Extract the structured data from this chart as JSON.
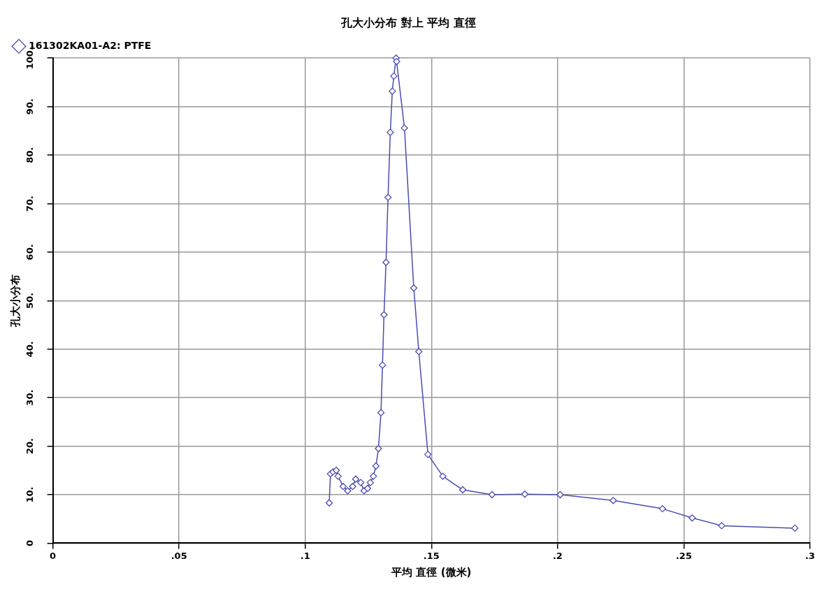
{
  "chart_data": {
    "type": "line",
    "title": "孔大小分布 對上 平均 直徑",
    "xlabel": "平均 直徑 (微米)",
    "ylabel": "孔大小分布",
    "xlim": [
      0,
      0.3
    ],
    "xticks": [
      0,
      {
        "value": 0.05,
        "label": ".05"
      },
      {
        "value": 0.1,
        "label": ".1"
      },
      {
        "value": 0.15,
        "label": ".15"
      },
      {
        "value": 0.2,
        "label": ".2"
      },
      {
        "value": 0.25,
        "label": ".25"
      },
      {
        "value": 0.3,
        "label": ".3"
      }
    ],
    "ylim": [
      0,
      100
    ],
    "yticks": [
      0,
      {
        "value": 10,
        "label": "10."
      },
      {
        "value": 20,
        "label": "20."
      },
      {
        "value": 30,
        "label": "30."
      },
      {
        "value": 40,
        "label": "40."
      },
      {
        "value": 50,
        "label": "50."
      },
      {
        "value": 60,
        "label": "60."
      },
      {
        "value": 70,
        "label": "70."
      },
      {
        "value": 80,
        "label": "80."
      },
      {
        "value": 90,
        "label": "90."
      },
      {
        "value": 100,
        "label": "100."
      }
    ],
    "grid": true,
    "legend": "top left",
    "marker": "diamond",
    "line_style": "solid",
    "series": [
      {
        "name": "161302KA01-A2: PTFE",
        "color": "#4b4bb4",
        "x": [
          0.1095,
          0.11,
          0.111,
          0.1123,
          0.113,
          0.115,
          0.1168,
          0.1188,
          0.12,
          0.122,
          0.1233,
          0.1247,
          0.1258,
          0.127,
          0.128,
          0.129,
          0.13,
          0.1306,
          0.1312,
          0.132,
          0.1328,
          0.1337,
          0.1345,
          0.1351,
          0.136,
          0.1362,
          0.1393,
          0.143,
          0.145,
          0.1486,
          0.1545,
          0.1624,
          0.174,
          0.187,
          0.201,
          0.222,
          0.2415,
          0.2533,
          0.265,
          0.294
        ],
        "values": [
          8.3,
          14.3,
          14.7,
          15.0,
          13.8,
          11.7,
          10.8,
          11.7,
          13.2,
          12.5,
          10.8,
          11.3,
          12.5,
          13.8,
          15.9,
          19.5,
          26.9,
          36.7,
          47.1,
          57.9,
          71.3,
          84.7,
          93.2,
          96.3,
          100,
          99.3,
          85.6,
          52.6,
          39.5,
          18.3,
          13.8,
          11.0,
          10.0,
          10.1,
          10.0,
          8.8,
          7.1,
          5.2,
          3.6,
          3.1
        ]
      }
    ]
  }
}
